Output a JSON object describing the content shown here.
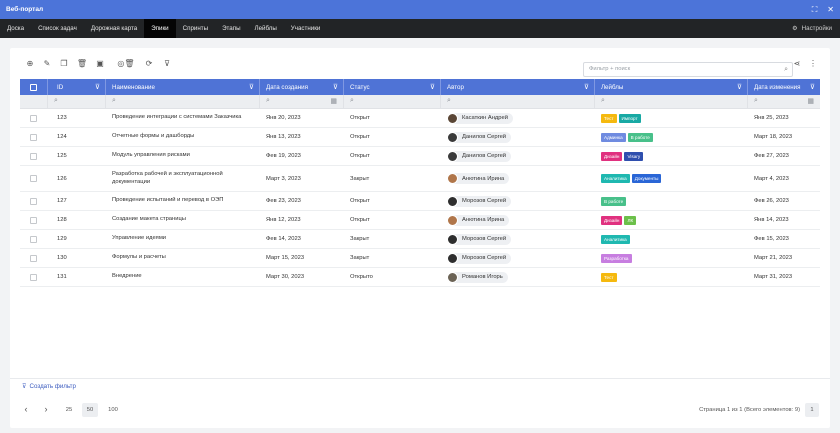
{
  "window": {
    "title": "Веб-портал"
  },
  "nav": {
    "tabs": [
      "Доска",
      "Список задач",
      "Дорожная карта",
      "Эпики",
      "Спринты",
      "Этапы",
      "Лейблы",
      "Участники"
    ],
    "active": "Эпики",
    "settings_label": "Настройки"
  },
  "toolbar": {
    "icons": [
      "add-icon",
      "edit-icon",
      "copy-icon",
      "delete-icon",
      "archive-icon",
      "delete-all-icon",
      "refresh-icon",
      "add-filter-icon"
    ],
    "search_placeholder": "Фильтр + поиск",
    "share_icon": "share-icon",
    "more_icon": "more-vertical-icon"
  },
  "table": {
    "columns": [
      "ID",
      "Наименование",
      "Дата создания",
      "Статус",
      "Автор",
      "Лейблы",
      "Дата изменения"
    ],
    "rows": [
      {
        "id": "123",
        "name": "Проведение интеграции с системами Заказчика",
        "created": "Янв 20, 2023",
        "status": "Открыт",
        "author": "Касаткин Андрей",
        "labels": [
          {
            "text": "Тест",
            "color": "#f5b90f"
          },
          {
            "text": "Импорт",
            "color": "#18a9a4"
          }
        ],
        "modified": "Янв 25, 2023"
      },
      {
        "id": "124",
        "name": "Отчетные формы и дашборды",
        "created": "Янв 13, 2023",
        "status": "Открыт",
        "author": "Данилов Сергей",
        "labels": [
          {
            "text": "Админка",
            "color": "#6f8be0"
          },
          {
            "text": "В работе",
            "color": "#48c08a"
          }
        ],
        "modified": "Март 18, 2023"
      },
      {
        "id": "125",
        "name": "Модуль управления рисками",
        "created": "Фев 19, 2023",
        "status": "Открыт",
        "author": "Данилов Сергей",
        "labels": [
          {
            "text": "Дизайн",
            "color": "#e0317f"
          },
          {
            "text": "Visary",
            "color": "#2f4fae"
          }
        ],
        "modified": "Фев 27, 2023"
      },
      {
        "id": "126",
        "name": "Разработка рабочей и эксплуатационной документации",
        "created": "Март 3, 2023",
        "status": "Закрыт",
        "author": "Анютина Ирина",
        "labels": [
          {
            "text": "Аналитика",
            "color": "#1fb8b0"
          },
          {
            "text": "Документы",
            "color": "#2a66d6"
          }
        ],
        "modified": "Март 4, 2023"
      },
      {
        "id": "127",
        "name": "Проведение испытаний и перевод в ОЭП",
        "created": "Фев 23, 2023",
        "status": "Открыт",
        "author": "Морозов Сергей",
        "labels": [
          {
            "text": "В работе",
            "color": "#48c08a"
          }
        ],
        "modified": "Фев 26, 2023"
      },
      {
        "id": "128",
        "name": "Создание макета страницы",
        "created": "Янв 12, 2023",
        "status": "Открыт",
        "author": "Анютина Ирина",
        "labels": [
          {
            "text": "Дизайн",
            "color": "#e0317f"
          },
          {
            "text": "ЛК",
            "color": "#6cc04a"
          }
        ],
        "modified": "Янв 14, 2023"
      },
      {
        "id": "129",
        "name": "Управление идеями",
        "created": "Фев 14, 2023",
        "status": "Закрыт",
        "author": "Морозов Сергей",
        "labels": [
          {
            "text": "Аналитика",
            "color": "#1fb8b0"
          }
        ],
        "modified": "Фев 15, 2023"
      },
      {
        "id": "130",
        "name": "Формулы и расчеты",
        "created": "Март 15, 2023",
        "status": "Закрыт",
        "author": "Морозов Сергей",
        "labels": [
          {
            "text": "Разработка",
            "color": "#c77ee0"
          }
        ],
        "modified": "Март 21, 2023"
      },
      {
        "id": "131",
        "name": "Внедрение",
        "created": "Март 30, 2023",
        "status": "Открыто",
        "author": "Романов Игорь",
        "labels": [
          {
            "text": "Тест",
            "color": "#f5b90f"
          }
        ],
        "modified": "Март 31, 2023"
      }
    ]
  },
  "footer": {
    "create_filter": "Создать фильтр",
    "page_sizes": [
      "25",
      "50",
      "100"
    ],
    "selected_page_size": "50",
    "page_info": "Страница 1 из 1 (Всего элементов: 9)",
    "current_page": "1"
  },
  "colors": {
    "accent": "#4f73d6",
    "titlebar": "#4c74d9",
    "nav": "#222426"
  }
}
